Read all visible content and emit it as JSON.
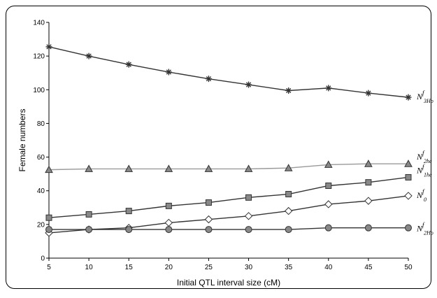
{
  "chart_data": {
    "type": "line",
    "title": "",
    "xlabel": "Initial QTL interval size (cM)",
    "ylabel": "Female numbers",
    "x": [
      5,
      10,
      15,
      20,
      25,
      30,
      35,
      40,
      45,
      50
    ],
    "xlim": [
      5,
      50
    ],
    "ylim": [
      0,
      140
    ],
    "xticks": [
      "5",
      "10",
      "15",
      "20",
      "25",
      "30",
      "35",
      "40",
      "45",
      "50"
    ],
    "yticks": [
      "0",
      "20",
      "40",
      "60",
      "80",
      "100",
      "120",
      "140"
    ],
    "grid": false,
    "series": [
      {
        "name": "N3Ho",
        "label_base": "N",
        "label_sup": "f",
        "label_sub": "3Ho",
        "marker": "star",
        "color": "#333333",
        "values": [
          125.5,
          120,
          115,
          110.5,
          106.5,
          103,
          99.5,
          101,
          98,
          95.5
        ]
      },
      {
        "name": "N2he",
        "label_base": "N",
        "label_sup": "f",
        "label_sub": "2he",
        "marker": "triangle",
        "color": "#999999",
        "values": [
          52.5,
          53,
          53,
          53,
          53,
          53,
          53.5,
          55.5,
          56,
          56
        ]
      },
      {
        "name": "N1he",
        "label_base": "N",
        "label_sup": "f",
        "label_sub": "1he",
        "marker": "square",
        "color": "#333333",
        "values": [
          24,
          26,
          28,
          31,
          33,
          36,
          38,
          43,
          45,
          48
        ]
      },
      {
        "name": "N0",
        "label_base": "N",
        "label_sup": "f",
        "label_sub": "0",
        "marker": "diamond",
        "color": "#333333",
        "values": [
          15,
          17,
          18,
          21,
          23,
          25,
          28,
          32,
          34,
          37
        ]
      },
      {
        "name": "N2Ho",
        "label_base": "N",
        "label_sup": "f",
        "label_sub": "2Ho",
        "marker": "circle",
        "color": "#333333",
        "values": [
          17,
          17,
          17,
          17,
          17,
          17,
          17,
          18,
          18,
          18
        ]
      }
    ]
  }
}
